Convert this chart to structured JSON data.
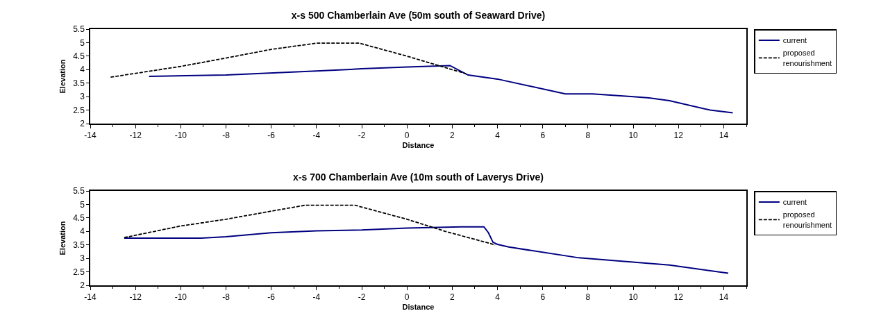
{
  "chart_data": [
    {
      "type": "line",
      "title": "x-s 500 Chamberlain Ave (50m south of Seaward Drive)",
      "xlabel": "Distance",
      "ylabel": "Elevation",
      "xlim": [
        -14,
        15
      ],
      "xticks": [
        -14,
        -12,
        -10,
        -8,
        -6,
        -4,
        -2,
        0,
        2,
        4,
        6,
        8,
        10,
        12,
        14
      ],
      "ylim": [
        2,
        5.5
      ],
      "yticks": [
        2,
        2.5,
        3,
        3.5,
        4,
        4.5,
        5,
        5.5
      ],
      "grid": false,
      "legend": "right",
      "marker": "none",
      "series": [
        {
          "name": "current",
          "color": "#000080",
          "line_style": "solid",
          "x": [
            -11.4,
            -8,
            -4,
            -2,
            0,
            1.9,
            2.7,
            4,
            7,
            8.2,
            10,
            10.7,
            11.6,
            13.4,
            14.4
          ],
          "values": [
            3.75,
            3.8,
            3.95,
            4.03,
            4.1,
            4.15,
            3.8,
            3.65,
            3.1,
            3.1,
            3.0,
            2.95,
            2.85,
            2.5,
            2.4
          ]
        },
        {
          "name": "proposed renourishment",
          "color": "#000000",
          "line_style": "dashed",
          "x": [
            -13.1,
            -10,
            -8,
            -6,
            -4,
            -2.1,
            0,
            2,
            2.6
          ],
          "values": [
            3.72,
            4.12,
            4.43,
            4.75,
            4.98,
            4.98,
            4.5,
            4.0,
            3.85
          ]
        }
      ]
    },
    {
      "type": "line",
      "title": "x-s 700 Chamberlain Ave (10m south of Laverys Drive)",
      "xlabel": "Distance",
      "ylabel": "Elevation",
      "xlim": [
        -14,
        15
      ],
      "xticks": [
        -14,
        -12,
        -10,
        -8,
        -6,
        -4,
        -2,
        0,
        2,
        4,
        6,
        8,
        10,
        12,
        14
      ],
      "ylim": [
        2,
        5.5
      ],
      "yticks": [
        2,
        2.5,
        3,
        3.5,
        4,
        4.5,
        5,
        5.5
      ],
      "grid": false,
      "legend": "right",
      "marker": "none",
      "series": [
        {
          "name": "current",
          "color": "#000080",
          "line_style": "solid",
          "x": [
            -12.5,
            -9.1,
            -8,
            -6,
            -4,
            -2,
            0,
            2.4,
            3.4,
            3.6,
            3.8,
            4,
            4.5,
            7.6,
            11.6,
            14.2
          ],
          "values": [
            3.75,
            3.75,
            3.8,
            3.95,
            4.02,
            4.05,
            4.12,
            4.17,
            4.17,
            3.95,
            3.6,
            3.52,
            3.42,
            3.02,
            2.75,
            2.45
          ]
        },
        {
          "name": "proposed renourishment",
          "color": "#000000",
          "line_style": "dashed",
          "x": [
            -12.5,
            -10,
            -8,
            -6,
            -4.5,
            -2.3,
            0,
            1.7,
            3.9
          ],
          "values": [
            3.77,
            4.2,
            4.45,
            4.75,
            4.97,
            4.97,
            4.45,
            4.0,
            3.5
          ]
        }
      ]
    }
  ]
}
